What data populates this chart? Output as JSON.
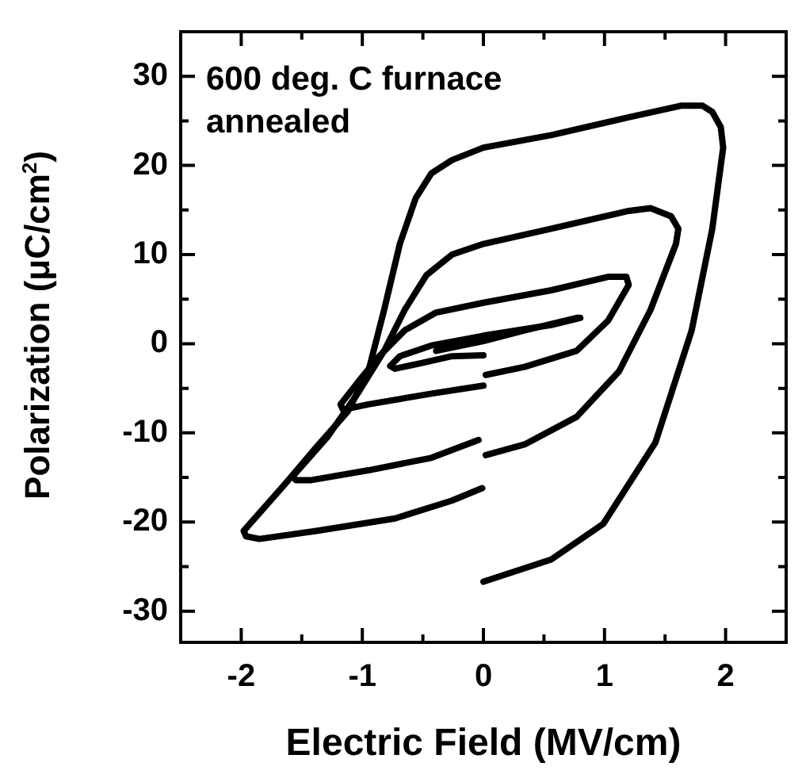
{
  "chart_data": {
    "type": "line",
    "xlabel": "Electric Field (MV/cm)",
    "ylabel": "Polarization (μC/cm$^{2}$)",
    "annotations": [
      "600 deg. C furnace\nannealed"
    ],
    "xlim": [
      -2.5,
      2.5
    ],
    "ylim": [
      -33.5,
      35
    ],
    "xticks": [
      {
        "value": -2.5,
        "label": null
      },
      -2,
      {
        "value": -1.5,
        "label": null
      },
      -1,
      {
        "value": -0.5,
        "label": null
      },
      0,
      {
        "value": 0.5,
        "label": null
      },
      1,
      {
        "value": 1.5,
        "label": null
      },
      2,
      {
        "value": 2.5,
        "label": null
      }
    ],
    "yticks": [
      -30,
      {
        "value": -25,
        "label": null
      },
      -20,
      {
        "value": -15,
        "label": null
      },
      -10,
      {
        "value": -5,
        "label": null
      },
      0,
      {
        "value": 5,
        "label": null
      },
      10,
      {
        "value": 15,
        "label": null
      },
      20,
      {
        "value": 25,
        "label": null
      },
      30
    ],
    "grid": false,
    "legend": false,
    "marker": "none",
    "line_style": "solid",
    "series": [
      {
        "type": "line",
        "color": "#000000",
        "x": [
          0,
          0.56,
          0.99,
          1.42,
          1.72,
          1.89,
          1.98,
          1.96,
          1.89,
          1.81,
          1.63,
          1.2,
          0.56,
          0,
          -0.26,
          -0.43,
          -0.56,
          -0.69,
          -0.82,
          -0.95,
          -1.12,
          -1.38,
          -1.63,
          -1.98,
          -1.96,
          -1.85,
          -1.38,
          -0.73,
          -0.26,
          -0.01
        ],
        "values": [
          -26.7,
          -24.2,
          -20.2,
          -11.1,
          1.5,
          12.9,
          22,
          24.3,
          26,
          26.7,
          26.7,
          25.4,
          23.4,
          22,
          20.6,
          19.1,
          16.3,
          11.2,
          3.8,
          -3.1,
          -7.6,
          -11.6,
          -15.6,
          -21,
          -21.6,
          -21.9,
          -21,
          -19.6,
          -17.6,
          -16.2
        ]
      },
      {
        "type": "line",
        "color": "#000000",
        "x": [
          0.02,
          0.34,
          0.77,
          1.12,
          1.38,
          1.59,
          1.61,
          1.55,
          1.38,
          1.2,
          0.56,
          0,
          -0.26,
          -0.47,
          -0.65,
          -0.82,
          -1.03,
          -1.29,
          -1.57,
          -1.55,
          -1.42,
          -0.95,
          -0.43,
          -0.04
        ],
        "values": [
          -12.5,
          -11.3,
          -8.2,
          -3.1,
          3.8,
          11.2,
          12.9,
          14.3,
          15.2,
          14.9,
          12.9,
          11.2,
          10,
          7.7,
          3.8,
          -0.8,
          -5.4,
          -10.5,
          -14.8,
          -15.3,
          -15.3,
          -14.2,
          -12.8,
          -10.8
        ]
      },
      {
        "type": "line",
        "color": "#000000",
        "x": [
          0.02,
          0.34,
          0.77,
          1.03,
          1.2,
          1.18,
          1.03,
          0.56,
          0,
          -0.39,
          -0.65,
          -0.86,
          -1.03,
          -1.18,
          -1.16,
          -0.95,
          -0.43,
          0
        ],
        "values": [
          -3.5,
          -2.6,
          -0.8,
          2.6,
          6.6,
          7.5,
          7.5,
          6,
          4.6,
          3.5,
          1.5,
          -1.4,
          -4.2,
          -6.8,
          -7.4,
          -6.8,
          -5.6,
          -4.7
        ]
      },
      {
        "type": "line",
        "color": "#000000",
        "x": [
          0,
          -0.26,
          -0.52,
          -0.73,
          -0.77,
          -0.69,
          -0.43,
          0,
          0.56,
          0.8,
          0.77,
          0.34,
          0,
          -0.39
        ],
        "values": [
          -1.3,
          -1.4,
          -2.2,
          -2.8,
          -2.5,
          -1.4,
          -0.2,
          0.9,
          2.1,
          2.9,
          2.9,
          1.5,
          0.3,
          -0.8
        ]
      }
    ]
  }
}
